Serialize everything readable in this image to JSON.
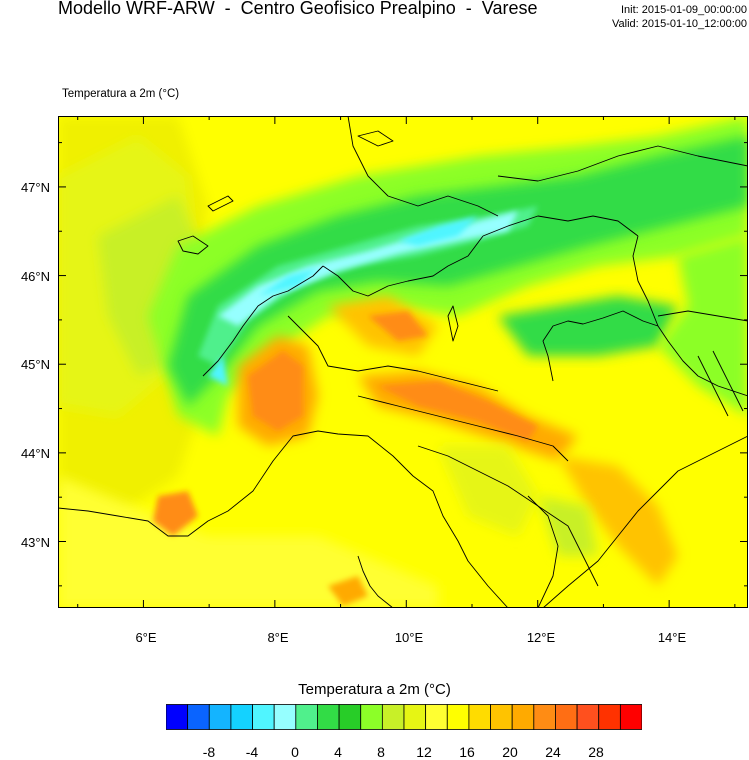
{
  "header": {
    "title": "Modello WRF-ARW  -  Centro Geofisico Prealpino  -  Varese",
    "init": "Init: 2015-01-09_00:00:00",
    "valid": "Valid: 2015-01-10_12:00:00"
  },
  "map": {
    "subtitle": "Temperatura a 2m (°C)",
    "lat_labels": [
      "47°N",
      "46°N",
      "45°N",
      "44°N",
      "43°N"
    ],
    "lon_labels": [
      "6°E",
      "8°E",
      "10°E",
      "12°E",
      "14°E"
    ],
    "lon_range": [
      4.7,
      15.2
    ],
    "lat_range": [
      42.25,
      47.8
    ]
  },
  "colorbar": {
    "title": "Temperatura a 2m  (°C)",
    "colors": [
      "#0000ff",
      "#0a64ff",
      "#14b4ff",
      "#14d2ff",
      "#50f5ff",
      "#96ffff",
      "#50f08c",
      "#32dc46",
      "#28cd28",
      "#8cff28",
      "#c8f028",
      "#e6f514",
      "#ffff32",
      "#ffff00",
      "#ffdc00",
      "#ffc300",
      "#ffaa00",
      "#ff8c14",
      "#ff6e14",
      "#ff501e",
      "#ff3200",
      "#ff0000"
    ],
    "labels": [
      "-8",
      "-4",
      "0",
      "4",
      "8",
      "12",
      "16",
      "20",
      "24",
      "28"
    ]
  }
}
